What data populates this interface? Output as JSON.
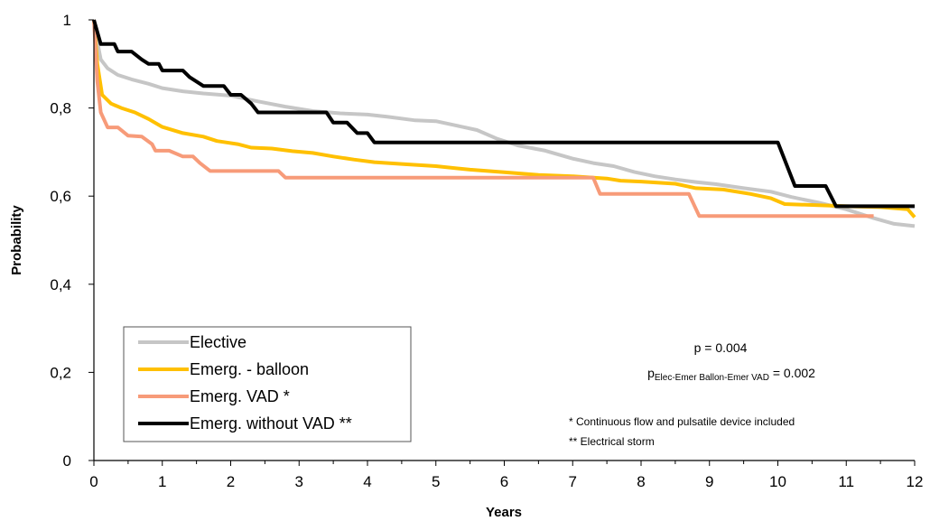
{
  "chart_data": {
    "type": "line",
    "title": "",
    "xlabel": "Years",
    "ylabel": "Probability",
    "xlim": [
      0,
      12
    ],
    "ylim": [
      0,
      1
    ],
    "x_ticks": [
      "0",
      "1",
      "2",
      "3",
      "4",
      "5",
      "6",
      "7",
      "8",
      "9",
      "10",
      "11",
      "12"
    ],
    "y_ticks": [
      "0",
      "0,2",
      "0,4",
      "0,6",
      "0,8",
      "1"
    ],
    "grid": false,
    "legend_position": "bottom-left",
    "series": [
      {
        "name": "Elective",
        "color": "#c6c6c6",
        "points": [
          [
            0,
            1
          ],
          [
            0.05,
            0.95
          ],
          [
            0.1,
            0.91
          ],
          [
            0.2,
            0.89
          ],
          [
            0.35,
            0.875
          ],
          [
            0.55,
            0.865
          ],
          [
            0.8,
            0.855
          ],
          [
            1.0,
            0.845
          ],
          [
            1.3,
            0.838
          ],
          [
            1.6,
            0.833
          ],
          [
            2.0,
            0.828
          ],
          [
            2.4,
            0.815
          ],
          [
            2.8,
            0.803
          ],
          [
            3.2,
            0.793
          ],
          [
            3.6,
            0.788
          ],
          [
            4.0,
            0.785
          ],
          [
            4.3,
            0.78
          ],
          [
            4.7,
            0.772
          ],
          [
            5.0,
            0.77
          ],
          [
            5.3,
            0.76
          ],
          [
            5.6,
            0.75
          ],
          [
            5.9,
            0.73
          ],
          [
            6.2,
            0.715
          ],
          [
            6.6,
            0.703
          ],
          [
            7.0,
            0.685
          ],
          [
            7.3,
            0.675
          ],
          [
            7.6,
            0.668
          ],
          [
            7.9,
            0.655
          ],
          [
            8.2,
            0.645
          ],
          [
            8.5,
            0.638
          ],
          [
            8.8,
            0.632
          ],
          [
            9.1,
            0.627
          ],
          [
            9.5,
            0.618
          ],
          [
            9.9,
            0.61
          ],
          [
            10.2,
            0.598
          ],
          [
            10.6,
            0.585
          ],
          [
            11.0,
            0.57
          ],
          [
            11.4,
            0.55
          ],
          [
            11.7,
            0.537
          ],
          [
            12,
            0.532
          ]
        ]
      },
      {
        "name": "Emerg. - balloon",
        "color": "#ffc000",
        "points": [
          [
            0,
            1
          ],
          [
            0.05,
            0.9
          ],
          [
            0.12,
            0.83
          ],
          [
            0.25,
            0.81
          ],
          [
            0.4,
            0.8
          ],
          [
            0.6,
            0.79
          ],
          [
            0.8,
            0.775
          ],
          [
            1.0,
            0.757
          ],
          [
            1.3,
            0.743
          ],
          [
            1.6,
            0.735
          ],
          [
            1.8,
            0.725
          ],
          [
            2.1,
            0.718
          ],
          [
            2.3,
            0.71
          ],
          [
            2.6,
            0.708
          ],
          [
            2.9,
            0.702
          ],
          [
            3.2,
            0.698
          ],
          [
            3.5,
            0.69
          ],
          [
            3.8,
            0.683
          ],
          [
            4.1,
            0.677
          ],
          [
            4.5,
            0.673
          ],
          [
            5.0,
            0.668
          ],
          [
            5.5,
            0.66
          ],
          [
            6.0,
            0.654
          ],
          [
            6.5,
            0.648
          ],
          [
            7.0,
            0.645
          ],
          [
            7.5,
            0.64
          ],
          [
            7.7,
            0.635
          ],
          [
            8.0,
            0.633
          ],
          [
            8.5,
            0.628
          ],
          [
            8.8,
            0.618
          ],
          [
            9.2,
            0.615
          ],
          [
            9.6,
            0.605
          ],
          [
            9.9,
            0.595
          ],
          [
            10.1,
            0.582
          ],
          [
            10.5,
            0.58
          ],
          [
            11.0,
            0.577
          ],
          [
            11.5,
            0.575
          ],
          [
            11.9,
            0.57
          ],
          [
            12,
            0.552
          ]
        ]
      },
      {
        "name": "Emerg. VAD *",
        "color": "#f79b79",
        "points": [
          [
            0,
            1
          ],
          [
            0.05,
            0.86
          ],
          [
            0.1,
            0.79
          ],
          [
            0.2,
            0.756
          ],
          [
            0.35,
            0.756
          ],
          [
            0.5,
            0.737
          ],
          [
            0.7,
            0.735
          ],
          [
            0.85,
            0.718
          ],
          [
            0.9,
            0.703
          ],
          [
            1.1,
            0.703
          ],
          [
            1.3,
            0.69
          ],
          [
            1.45,
            0.69
          ],
          [
            1.55,
            0.675
          ],
          [
            1.7,
            0.657
          ],
          [
            2.0,
            0.657
          ],
          [
            2.7,
            0.657
          ],
          [
            2.8,
            0.642
          ],
          [
            3.5,
            0.642
          ],
          [
            5.0,
            0.642
          ],
          [
            6.0,
            0.642
          ],
          [
            7.3,
            0.642
          ],
          [
            7.4,
            0.605
          ],
          [
            8.7,
            0.605
          ],
          [
            8.85,
            0.555
          ],
          [
            10.0,
            0.555
          ],
          [
            11.4,
            0.555
          ]
        ]
      },
      {
        "name": "Emerg. without VAD **",
        "color": "#000000",
        "points": [
          [
            0,
            1
          ],
          [
            0.1,
            0.945
          ],
          [
            0.3,
            0.945
          ],
          [
            0.35,
            0.928
          ],
          [
            0.55,
            0.928
          ],
          [
            0.7,
            0.91
          ],
          [
            0.8,
            0.9
          ],
          [
            0.95,
            0.9
          ],
          [
            1.0,
            0.885
          ],
          [
            1.3,
            0.885
          ],
          [
            1.4,
            0.87
          ],
          [
            1.6,
            0.85
          ],
          [
            1.9,
            0.85
          ],
          [
            2.0,
            0.83
          ],
          [
            2.15,
            0.83
          ],
          [
            2.3,
            0.81
          ],
          [
            2.4,
            0.79
          ],
          [
            3.4,
            0.79
          ],
          [
            3.5,
            0.767
          ],
          [
            3.7,
            0.767
          ],
          [
            3.85,
            0.743
          ],
          [
            4.0,
            0.743
          ],
          [
            4.1,
            0.722
          ],
          [
            10.0,
            0.722
          ],
          [
            10.25,
            0.623
          ],
          [
            10.7,
            0.623
          ],
          [
            10.85,
            0.577
          ],
          [
            12,
            0.577
          ]
        ]
      }
    ],
    "annotations": {
      "p_main": "p = 0.004",
      "p_sub_prefix": "p",
      "p_sub_text": "Elec-Emer Ballon-Emer VAD",
      "p_sub_value": " = 0.002",
      "footnote1": "* Continuous flow and pulsatile device included",
      "footnote2": "** Electrical storm"
    }
  }
}
